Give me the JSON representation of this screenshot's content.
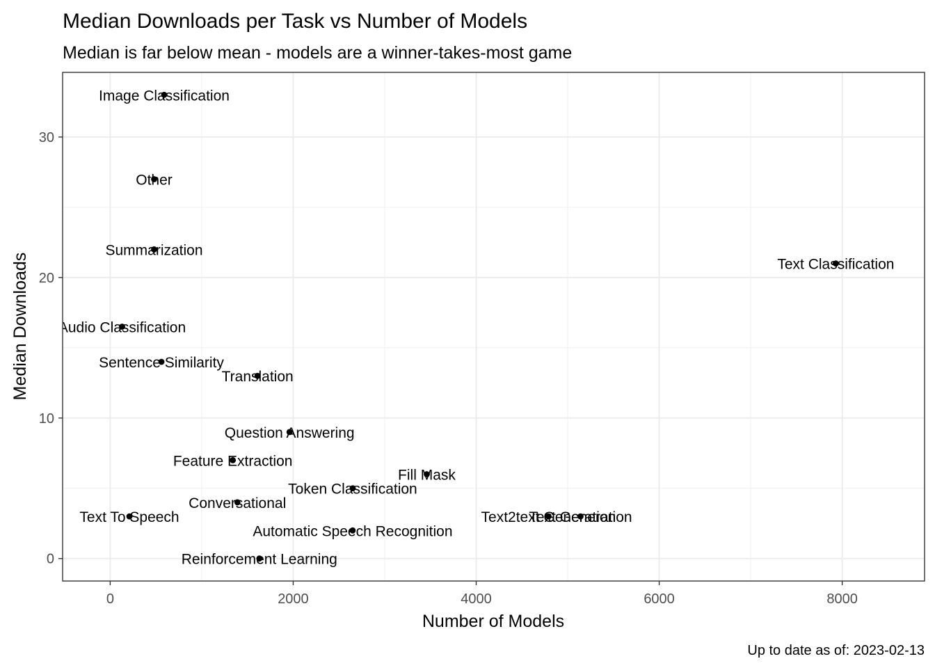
{
  "chart_data": {
    "type": "scatter",
    "title": "Median Downloads per Task vs Number of Models",
    "subtitle": "Median is far below mean - models are a winner-takes-most game",
    "xlabel": "Number of Models",
    "ylabel": "Median Downloads",
    "caption": "Up to date as of: 2023-02-13",
    "xlim": [
      -520,
      8900
    ],
    "ylim": [
      -1.6,
      34.6
    ],
    "x_ticks": [
      0,
      2000,
      4000,
      6000,
      8000
    ],
    "x_tick_labels": [
      "0",
      "2000",
      "4000",
      "6000",
      "8000"
    ],
    "y_ticks": [
      0,
      10,
      20,
      30
    ],
    "y_tick_labels": [
      "0",
      "10",
      "20",
      "30"
    ],
    "grid": true,
    "point_color": "#000000",
    "points": [
      {
        "label": "Image Classification",
        "x": 590,
        "y": 33
      },
      {
        "label": "Other",
        "x": 480,
        "y": 27
      },
      {
        "label": "Summarization",
        "x": 480,
        "y": 22
      },
      {
        "label": "Text Classification",
        "x": 7930,
        "y": 21
      },
      {
        "label": "Audio Classification",
        "x": 130,
        "y": 16.5
      },
      {
        "label": "Sentence Similarity",
        "x": 560,
        "y": 14
      },
      {
        "label": "Translation",
        "x": 1610,
        "y": 13
      },
      {
        "label": "Question Answering",
        "x": 1960,
        "y": 9
      },
      {
        "label": "Feature Extraction",
        "x": 1340,
        "y": 7
      },
      {
        "label": "Fill Mask",
        "x": 3460,
        "y": 6
      },
      {
        "label": "Token Classification",
        "x": 2650,
        "y": 5
      },
      {
        "label": "Conversational",
        "x": 1390,
        "y": 4
      },
      {
        "label": "Text To Speech",
        "x": 210,
        "y": 3
      },
      {
        "label": "Text2text Generation",
        "x": 4790,
        "y": 3
      },
      {
        "label": "Text Generation",
        "x": 5140,
        "y": 3
      },
      {
        "label": "Automatic Speech Recognition",
        "x": 2650,
        "y": 2
      },
      {
        "label": "Reinforcement Learning",
        "x": 1630,
        "y": 0
      }
    ]
  }
}
